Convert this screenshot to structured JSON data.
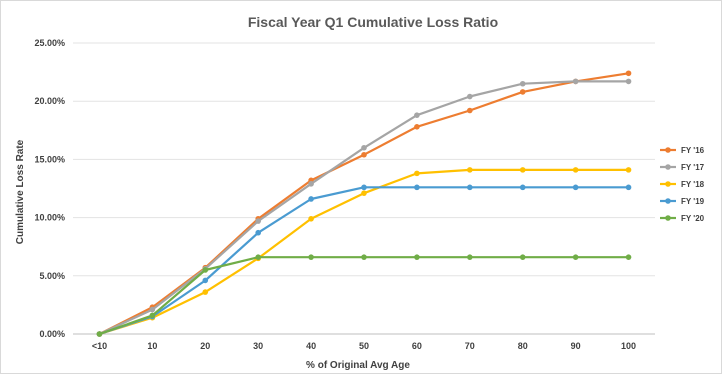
{
  "chart_data": {
    "type": "line",
    "title": "Fiscal Year Q1 Cumulative Loss Ratio",
    "xlabel": "% of Original Avg Age",
    "ylabel": "Cumulative Loss Rate",
    "categories": [
      "<10",
      "10",
      "20",
      "30",
      "40",
      "50",
      "60",
      "70",
      "80",
      "90",
      "100"
    ],
    "ylim": [
      0,
      25
    ],
    "yticks": [
      "0.00%",
      "5.00%",
      "10.00%",
      "15.00%",
      "20.00%",
      "25.00%"
    ],
    "grid": "horizontal",
    "legend_position": "right",
    "series": [
      {
        "name": "FY '16",
        "color": "#ED7D31",
        "values": [
          0.0,
          2.3,
          5.7,
          9.9,
          13.2,
          15.4,
          17.8,
          19.2,
          20.8,
          21.7,
          22.4
        ]
      },
      {
        "name": "FY '17",
        "color": "#A5A5A5",
        "values": [
          0.0,
          2.1,
          5.6,
          9.7,
          12.9,
          16.0,
          18.8,
          20.4,
          21.5,
          21.7,
          21.7
        ]
      },
      {
        "name": "FY '18",
        "color": "#FFC000",
        "values": [
          0.0,
          1.4,
          3.6,
          6.5,
          9.9,
          12.1,
          13.8,
          14.1,
          14.1,
          14.1,
          14.1
        ]
      },
      {
        "name": "FY '19",
        "color": "#4A9BD1",
        "values": [
          0.0,
          1.5,
          4.6,
          8.7,
          11.6,
          12.6,
          12.6,
          12.6,
          12.6,
          12.6,
          12.6
        ]
      },
      {
        "name": "FY '20",
        "color": "#70AD47",
        "values": [
          0.0,
          1.6,
          5.5,
          6.6,
          6.6,
          6.6,
          6.6,
          6.6,
          6.6,
          6.6,
          6.6
        ]
      }
    ]
  }
}
